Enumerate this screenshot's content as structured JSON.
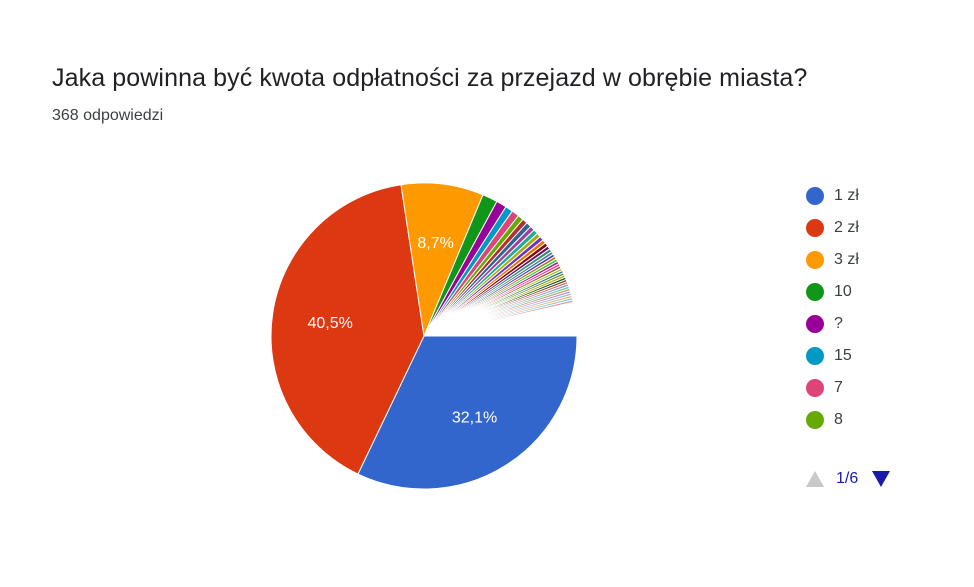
{
  "title": "Jaka powinna być kwota odpłatności za przejazd w obrębie miasta?",
  "subtitle": "368 odpowiedzi",
  "pager": {
    "label": "1/6"
  },
  "chart_data": {
    "type": "pie",
    "title": "Jaka powinna być kwota odpłatności za przejazd w obrębie miasta?",
    "total_responses": 368,
    "legend_position": "right",
    "slices": [
      {
        "name": "1 zł",
        "value": 32.1,
        "label": "32,1%",
        "color": "#3366cc"
      },
      {
        "name": "2 zł",
        "value": 40.5,
        "label": "40,5%",
        "color": "#dc3912"
      },
      {
        "name": "3 zł",
        "value": 8.7,
        "label": "8,7%",
        "color": "#ff9900"
      },
      {
        "name": "10",
        "value": 1.6,
        "label": "",
        "color": "#109618"
      },
      {
        "name": "?",
        "value": 1.1,
        "label": "",
        "color": "#990099"
      },
      {
        "name": "15",
        "value": 0.8,
        "label": "",
        "color": "#0099c6"
      },
      {
        "name": "7",
        "value": 0.8,
        "label": "",
        "color": "#dd4477"
      },
      {
        "name": "8",
        "value": 0.6,
        "label": "",
        "color": "#66aa00"
      }
    ],
    "other_small_slices": [
      {
        "value": 0.55,
        "color": "#b82e2e"
      },
      {
        "value": 0.55,
        "color": "#316395"
      },
      {
        "value": 0.5,
        "color": "#994499"
      },
      {
        "value": 0.5,
        "color": "#22aa99"
      },
      {
        "value": 0.45,
        "color": "#aaaa11"
      },
      {
        "value": 0.45,
        "color": "#6633cc"
      },
      {
        "value": 0.4,
        "color": "#e67300"
      },
      {
        "value": 0.4,
        "color": "#8b0707"
      },
      {
        "value": 0.35,
        "color": "#651067"
      },
      {
        "value": 0.35,
        "color": "#329262"
      },
      {
        "value": 0.3,
        "color": "#5574a6"
      },
      {
        "value": 0.3,
        "color": "#3b3eac"
      },
      {
        "value": 0.3,
        "color": "#b77322"
      },
      {
        "value": 0.28,
        "color": "#16d620"
      },
      {
        "value": 0.28,
        "color": "#b91383"
      },
      {
        "value": 0.27,
        "color": "#f4359e"
      },
      {
        "value": 0.27,
        "color": "#9c5935"
      },
      {
        "value": 0.26,
        "color": "#a9c413"
      },
      {
        "value": 0.26,
        "color": "#2a778d"
      },
      {
        "value": 0.25,
        "color": "#668d1c"
      },
      {
        "value": 0.25,
        "color": "#bea413"
      },
      {
        "value": 0.25,
        "color": "#0c5922"
      },
      {
        "value": 0.25,
        "color": "#743411"
      },
      {
        "value": 0.25,
        "color": "#dc6666"
      },
      {
        "value": 0.25,
        "color": "#8899cc"
      },
      {
        "value": 0.25,
        "color": "#66cc99"
      },
      {
        "value": 0.25,
        "color": "#cc9966"
      },
      {
        "value": 0.25,
        "color": "#bb88cc"
      },
      {
        "value": 0.25,
        "color": "#99bbdd"
      },
      {
        "value": 0.25,
        "color": "#eeaa77"
      },
      {
        "value": 0.25,
        "color": "#88cccc"
      },
      {
        "value": 0.25,
        "color": "#dd99aa"
      }
    ],
    "remaining_color": "#ffffff"
  }
}
